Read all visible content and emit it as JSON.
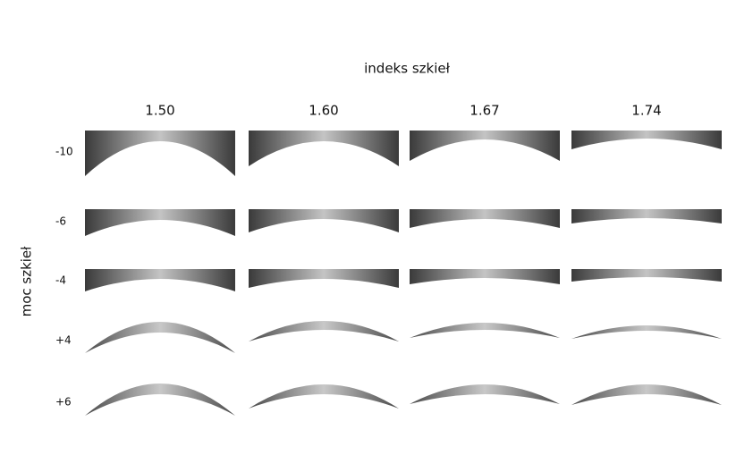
{
  "header": {
    "column_title": "indeks szkieł",
    "row_title": "moc szkieł"
  },
  "columns": [
    "1.50",
    "1.60",
    "1.67",
    "1.74"
  ],
  "rows": [
    "-10",
    "-6",
    "-4",
    "+4",
    "+6"
  ]
}
